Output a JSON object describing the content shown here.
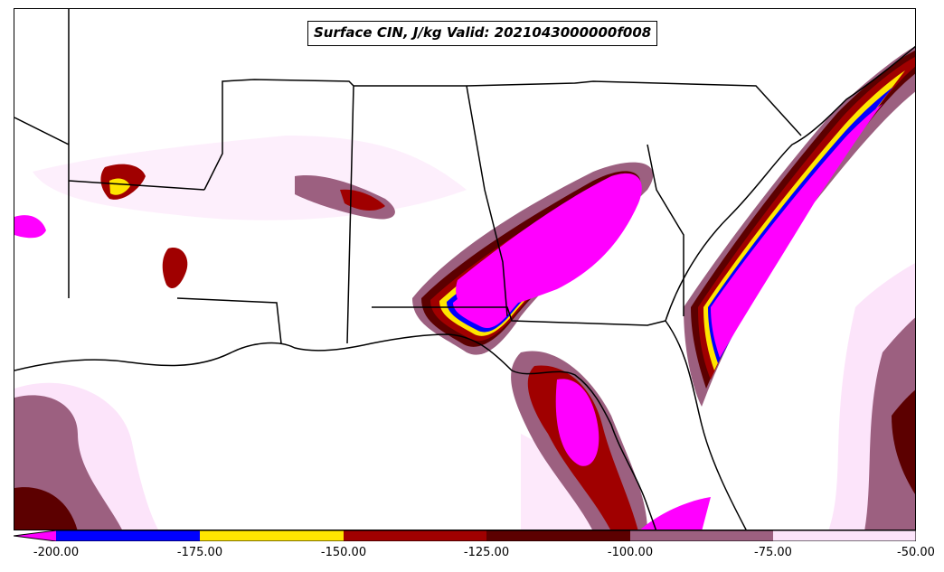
{
  "title": "Surface CIN, J/kg Valid: 2021043000000f008",
  "colorbar": {
    "ticks": [
      "-200.00",
      "-175.00",
      "-150.00",
      "-125.00",
      "-100.00",
      "-75.00",
      "-50.00"
    ],
    "bins": [
      {
        "range": "< -200",
        "color": "#ff00ff"
      },
      {
        "range": "-200 to -175",
        "color": "#0000ff"
      },
      {
        "range": "-175 to -150",
        "color": "#ffe600"
      },
      {
        "range": "-150 to -125",
        "color": "#a00000"
      },
      {
        "range": "-125 to -100",
        "color": "#5c0000"
      },
      {
        "range": "-100 to -75",
        "color": "#9c6080"
      },
      {
        "range": "-75 to -50",
        "color": "#fce4fa"
      }
    ]
  },
  "colors": {
    "very_light_pink": "#fce4fa",
    "mauve": "#9c6080",
    "dark_maroon": "#5c0000",
    "maroon": "#a00000",
    "yellow": "#ffe600",
    "blue": "#0000ff",
    "magenta": "#ff00ff"
  }
}
